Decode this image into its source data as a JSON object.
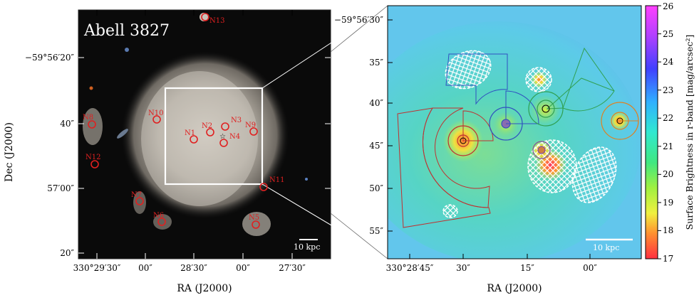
{
  "left_panel": {
    "title": "Abell 3827",
    "x_axis_label": "RA (J2000)",
    "y_axis_label": "Dec (J2000)",
    "x_ticks": [
      "330°29′30″",
      "00″",
      "28′30″",
      "00″",
      "27′30″"
    ],
    "y_ticks": [
      "−59°56′20″",
      "40″",
      "57′00″",
      "20″"
    ],
    "scale_bar_label": "10 kpc",
    "markers": [
      "N1",
      "N2",
      "N3",
      "N4",
      "N5",
      "N6",
      "N7",
      "N8",
      "N9",
      "N10",
      "N11",
      "N12",
      "N13"
    ]
  },
  "right_panel": {
    "x_axis_label": "RA (J2000)",
    "x_ticks": [
      "330°28′45″",
      "30″",
      "15″",
      "00″"
    ],
    "y_ticks": [
      "−59°56′30″",
      "35″",
      "40″",
      "45″",
      "50″",
      "55″"
    ],
    "scale_bar_label": "10 kpc"
  },
  "colorbar": {
    "label": "Surface Brightness in r-band [mag/arcsec²]",
    "ticks": [
      "26",
      "25",
      "24",
      "23",
      "22",
      "21",
      "20",
      "19",
      "18",
      "17"
    ],
    "colormap": "rainbow-hsv (magenta at 26, blue, cyan, green, yellow, red at 17)"
  },
  "colors": {
    "marker_red": "#e02020",
    "frame_white": "#ffffff",
    "galaxy_gray": "#b8b2a8",
    "background_cyan": "#5fd8e8"
  }
}
